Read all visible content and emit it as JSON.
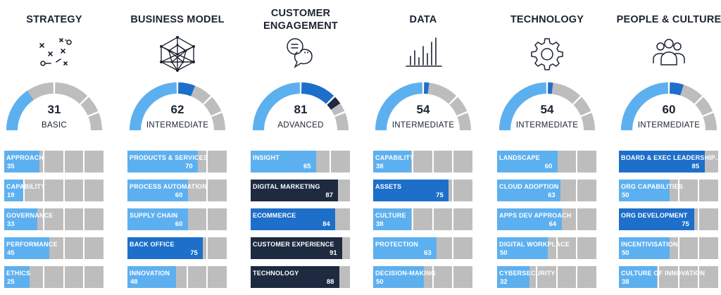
{
  "colors": {
    "light": "#5db0ef",
    "medium": "#1d6fc9",
    "dark": "#1d2a3f",
    "track": "#bdbdbd"
  },
  "columns": [
    {
      "title": "STRATEGY",
      "icon": "strategy-play-icon",
      "score": "31",
      "score_value": 31,
      "level": "BASIC",
      "metrics": [
        {
          "label": "APPROACH",
          "value": 35,
          "display": "35",
          "tone": "light",
          "align": "left"
        },
        {
          "label": "CAPABILITY",
          "value": 19,
          "display": "19",
          "tone": "light",
          "align": "left"
        },
        {
          "label": "GOVERNANCE",
          "value": 33,
          "display": "33",
          "tone": "light",
          "align": "left"
        },
        {
          "label": "PERFORMANCE",
          "value": 45,
          "display": "45",
          "tone": "light",
          "align": "left"
        },
        {
          "label": "ETHICS",
          "value": 25,
          "display": "25",
          "tone": "light",
          "align": "left"
        }
      ]
    },
    {
      "title": "BUSINESS MODEL",
      "icon": "network-sphere-icon",
      "score": "62",
      "score_value": 62,
      "level": "INTERMEDIATE",
      "metrics": [
        {
          "label": "PRODUCTS & SERVICES",
          "value": 70,
          "display": "70",
          "tone": "light",
          "align": "right"
        },
        {
          "label": "PROCESS AUTOMATION",
          "value": 60,
          "display": "60",
          "tone": "light",
          "align": "right"
        },
        {
          "label": "SUPPLY CHAIN",
          "value": 60,
          "display": "60",
          "tone": "light",
          "align": "right"
        },
        {
          "label": "BACK OFFICE",
          "value": 75,
          "display": "75",
          "tone": "medium",
          "align": "right"
        },
        {
          "label": "INNOVATION",
          "value": 48,
          "display": "48",
          "tone": "light",
          "align": "left"
        }
      ]
    },
    {
      "title": "CUSTOMER ENGAGEMENT",
      "icon": "speech-bubble-icon",
      "score": "81",
      "score_value": 81,
      "level": "ADVANCED",
      "metrics": [
        {
          "label": "INSIGHT",
          "value": 65,
          "display": "65",
          "tone": "light",
          "align": "right"
        },
        {
          "label": "DIGITAL MARKETING",
          "value": 87,
          "display": "87",
          "tone": "dark",
          "align": "right"
        },
        {
          "label": "ECOMMERCE",
          "value": 84,
          "display": "84",
          "tone": "medium",
          "align": "right"
        },
        {
          "label": "CUSTOMER EXPERIENCE",
          "value": 91,
          "display": "91",
          "tone": "dark",
          "align": "right"
        },
        {
          "label": "TECHNOLOGY",
          "value": 88,
          "display": "88",
          "tone": "dark",
          "align": "right"
        }
      ]
    },
    {
      "title": "DATA",
      "icon": "bar-chart-icon",
      "score": "54",
      "score_value": 54,
      "level": "INTERMEDIATE",
      "metrics": [
        {
          "label": "CAPABILITY",
          "value": 38,
          "display": "38",
          "tone": "light",
          "align": "left"
        },
        {
          "label": "ASSETS",
          "value": 75,
          "display": "75",
          "tone": "medium",
          "align": "right"
        },
        {
          "label": "CULTURE",
          "value": 38,
          "display": "38",
          "tone": "light",
          "align": "left"
        },
        {
          "label": "PROTECTION",
          "value": 63,
          "display": "63",
          "tone": "light",
          "align": "right"
        },
        {
          "label": "DECISION-MAKING",
          "value": 50,
          "display": "50",
          "tone": "light",
          "align": "left"
        }
      ]
    },
    {
      "title": "TECHNOLOGY",
      "icon": "gear-icon",
      "score": "54",
      "score_value": 54,
      "level": "INTERMEDIATE",
      "metrics": [
        {
          "label": "LANDSCAPE",
          "value": 60,
          "display": "60",
          "tone": "light",
          "align": "right"
        },
        {
          "label": "CLOUD ADOPTION",
          "value": 63,
          "display": "63",
          "tone": "light",
          "align": "right"
        },
        {
          "label": "APPS DEV APPROACH",
          "value": 64,
          "display": "64",
          "tone": "light",
          "align": "right"
        },
        {
          "label": "DIGITAL WORKPLACE",
          "value": 50,
          "display": "50",
          "tone": "light",
          "align": "left"
        },
        {
          "label": "CYBERSECURITY",
          "value": 32,
          "display": "32",
          "tone": "light",
          "align": "left"
        }
      ]
    },
    {
      "title": "PEOPLE & CULTURE",
      "icon": "people-group-icon",
      "score": "60",
      "score_value": 60,
      "level": "INTERMEDIATE",
      "metrics": [
        {
          "label": "BOARD & EXEC LEADERSHIP...",
          "value": 85,
          "display": "85",
          "tone": "medium",
          "align": "right"
        },
        {
          "label": "ORG CAPABILITIES",
          "value": 50,
          "display": "50",
          "tone": "light",
          "align": "left"
        },
        {
          "label": "ORG DEVELOPMENT",
          "value": 75,
          "display": "75",
          "tone": "medium",
          "align": "right"
        },
        {
          "label": "INCENTIVISATION",
          "value": 50,
          "display": "50",
          "tone": "light",
          "align": "left"
        },
        {
          "label": "CULTURE OF INNOVATION",
          "value": 38,
          "display": "38",
          "tone": "light",
          "align": "left"
        }
      ]
    }
  ]
}
